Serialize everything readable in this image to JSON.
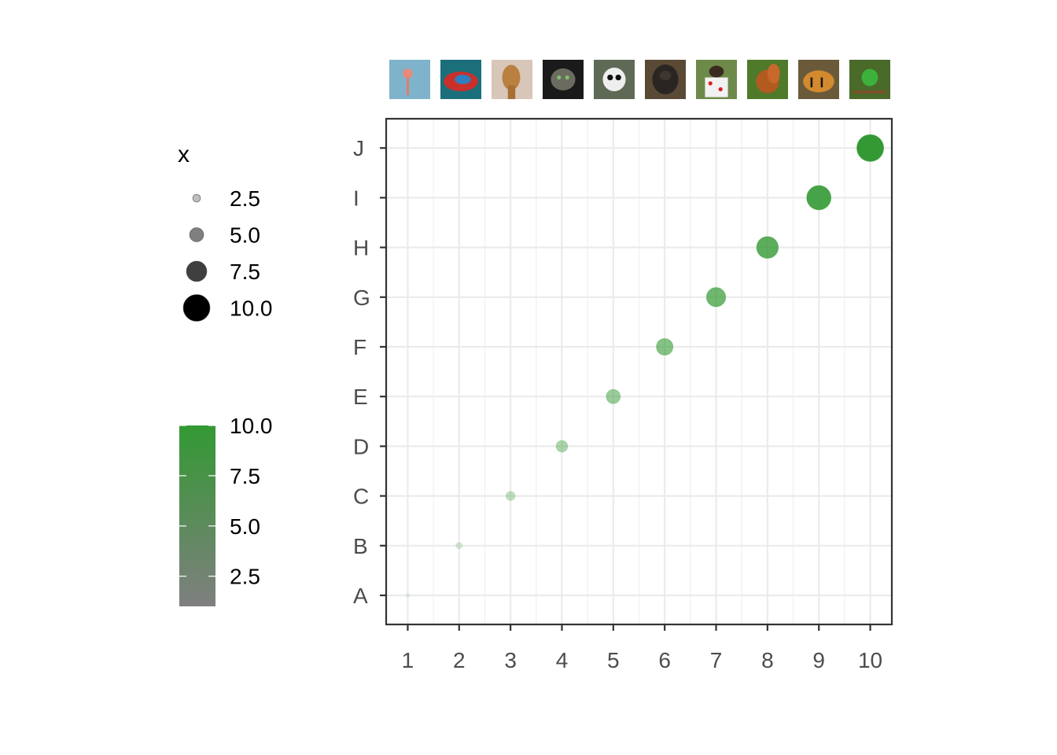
{
  "chart_data": {
    "type": "scatter",
    "title": "",
    "xlabel": "",
    "ylabel": "",
    "x": [
      1,
      2,
      3,
      4,
      5,
      6,
      7,
      8,
      9,
      10
    ],
    "y": [
      "A",
      "B",
      "C",
      "D",
      "E",
      "F",
      "G",
      "H",
      "I",
      "J"
    ],
    "size": [
      1,
      2,
      3,
      4,
      5,
      6,
      7,
      8,
      9,
      10
    ],
    "color": [
      1,
      2,
      3,
      4,
      5,
      6,
      7,
      8,
      9,
      10
    ],
    "x_ticks": [
      "1",
      "2",
      "3",
      "4",
      "5",
      "6",
      "7",
      "8",
      "9",
      "10"
    ],
    "y_categories": [
      "A",
      "B",
      "C",
      "D",
      "E",
      "F",
      "G",
      "H",
      "I",
      "J"
    ],
    "xlim": [
      0.58,
      10.42
    ],
    "grid": true,
    "alpha_by_value": true,
    "top_images": [
      "flamingo",
      "chameleon",
      "giraffe",
      "cat",
      "panda",
      "gorilla",
      "puppy-in-cup",
      "squirrel",
      "tiger",
      "parrot"
    ],
    "size_legend": {
      "title": "x",
      "labels": [
        "2.5",
        "5.0",
        "7.5",
        "10.0"
      ],
      "values": [
        2.5,
        5.0,
        7.5,
        10.0
      ]
    },
    "color_legend": {
      "labels": [
        "10.0",
        "7.5",
        "5.0",
        "2.5"
      ],
      "values": [
        10.0,
        7.5,
        5.0,
        2.5
      ],
      "color_low": "#7f7f7f",
      "color_high": "#339933"
    },
    "point_color": "#339933"
  }
}
